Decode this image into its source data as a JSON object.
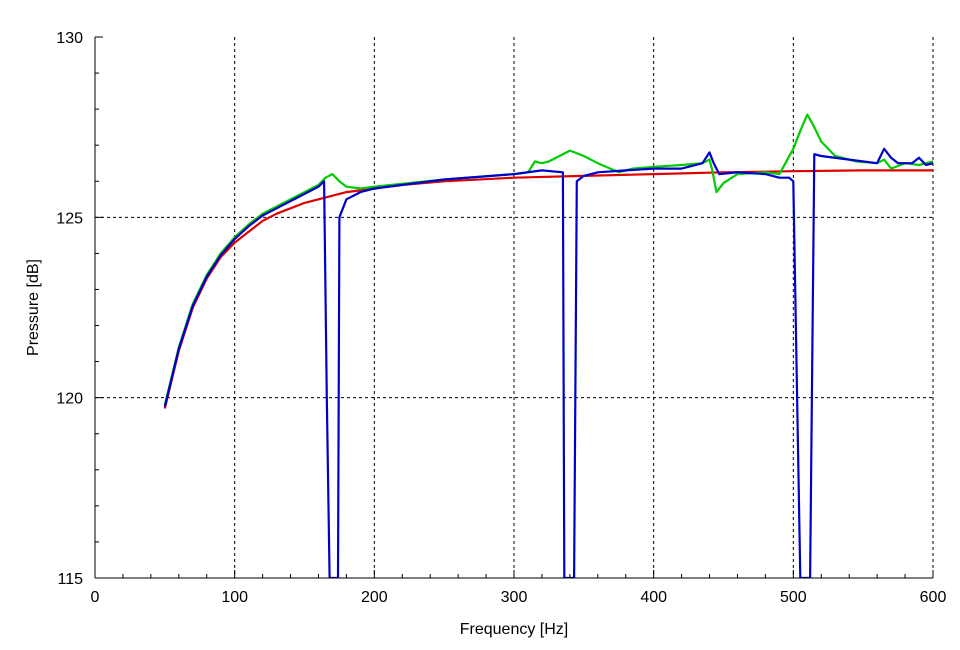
{
  "chart_data": {
    "type": "line",
    "title": "",
    "xlabel": "Frequency [Hz]",
    "ylabel": "Pressure [dB]",
    "xlim": [
      0,
      600
    ],
    "ylim": [
      115,
      130
    ],
    "x_ticks": [
      0,
      100,
      200,
      300,
      400,
      500,
      600
    ],
    "y_ticks": [
      115,
      120,
      125,
      130
    ],
    "x_tick_labels": [
      "0",
      "100",
      "200",
      "300",
      "400",
      "500",
      "600"
    ],
    "y_tick_labels": [
      "115",
      "120",
      "125",
      "130"
    ],
    "x_minor_step": 20,
    "y_minor_step": 1,
    "grid": "dashed at major ticks",
    "legend": "none",
    "series": [
      {
        "color": "#dd0000",
        "points": [
          [
            50,
            119.7
          ],
          [
            60,
            121.3
          ],
          [
            70,
            122.5
          ],
          [
            80,
            123.3
          ],
          [
            90,
            123.9
          ],
          [
            100,
            124.3
          ],
          [
            110,
            124.6
          ],
          [
            120,
            124.9
          ],
          [
            130,
            125.1
          ],
          [
            140,
            125.25
          ],
          [
            150,
            125.4
          ],
          [
            160,
            125.5
          ],
          [
            170,
            125.6
          ],
          [
            180,
            125.7
          ],
          [
            200,
            125.8
          ],
          [
            220,
            125.9
          ],
          [
            250,
            126.0
          ],
          [
            300,
            126.1
          ],
          [
            350,
            126.15
          ],
          [
            400,
            126.2
          ],
          [
            450,
            126.25
          ],
          [
            500,
            126.28
          ],
          [
            550,
            126.3
          ],
          [
            600,
            126.3
          ]
        ]
      },
      {
        "color": "#00cc00",
        "points": [
          [
            50,
            119.8
          ],
          [
            60,
            121.4
          ],
          [
            70,
            122.6
          ],
          [
            80,
            123.4
          ],
          [
            90,
            124.0
          ],
          [
            100,
            124.45
          ],
          [
            110,
            124.8
          ],
          [
            120,
            125.1
          ],
          [
            130,
            125.3
          ],
          [
            140,
            125.5
          ],
          [
            150,
            125.7
          ],
          [
            160,
            125.9
          ],
          [
            165,
            126.1
          ],
          [
            170,
            126.2
          ],
          [
            175,
            126.0
          ],
          [
            180,
            125.85
          ],
          [
            190,
            125.8
          ],
          [
            200,
            125.85
          ],
          [
            250,
            126.05
          ],
          [
            300,
            126.2
          ],
          [
            310,
            126.25
          ],
          [
            315,
            126.55
          ],
          [
            320,
            126.5
          ],
          [
            325,
            126.55
          ],
          [
            340,
            126.85
          ],
          [
            350,
            126.7
          ],
          [
            360,
            126.5
          ],
          [
            375,
            126.25
          ],
          [
            385,
            126.35
          ],
          [
            400,
            126.4
          ],
          [
            420,
            126.45
          ],
          [
            435,
            126.5
          ],
          [
            440,
            126.6
          ],
          [
            442,
            126.3
          ],
          [
            445,
            125.7
          ],
          [
            450,
            125.95
          ],
          [
            460,
            126.2
          ],
          [
            480,
            126.25
          ],
          [
            490,
            126.2
          ],
          [
            500,
            126.9
          ],
          [
            505,
            127.4
          ],
          [
            510,
            127.85
          ],
          [
            515,
            127.5
          ],
          [
            520,
            127.1
          ],
          [
            530,
            126.7
          ],
          [
            545,
            126.55
          ],
          [
            560,
            126.5
          ],
          [
            565,
            126.6
          ],
          [
            570,
            126.35
          ],
          [
            580,
            126.5
          ],
          [
            590,
            126.45
          ],
          [
            600,
            126.55
          ]
        ]
      },
      {
        "color": "#0000cc",
        "points": [
          [
            50,
            119.75
          ],
          [
            60,
            121.35
          ],
          [
            70,
            122.55
          ],
          [
            80,
            123.35
          ],
          [
            90,
            123.95
          ],
          [
            100,
            124.4
          ],
          [
            110,
            124.75
          ],
          [
            120,
            125.05
          ],
          [
            130,
            125.25
          ],
          [
            140,
            125.45
          ],
          [
            150,
            125.65
          ],
          [
            160,
            125.85
          ],
          [
            164,
            126.0
          ],
          [
            166,
            120.0
          ],
          [
            168,
            115.0
          ],
          [
            174,
            115.0
          ],
          [
            175,
            125.0
          ],
          [
            180,
            125.5
          ],
          [
            190,
            125.7
          ],
          [
            200,
            125.8
          ],
          [
            250,
            126.05
          ],
          [
            300,
            126.2
          ],
          [
            320,
            126.3
          ],
          [
            335,
            126.25
          ],
          [
            336,
            115.0
          ],
          [
            343,
            115.0
          ],
          [
            345,
            126.0
          ],
          [
            350,
            126.15
          ],
          [
            360,
            126.25
          ],
          [
            380,
            126.3
          ],
          [
            400,
            126.35
          ],
          [
            420,
            126.35
          ],
          [
            435,
            126.5
          ],
          [
            440,
            126.8
          ],
          [
            443,
            126.5
          ],
          [
            447,
            126.2
          ],
          [
            460,
            126.25
          ],
          [
            480,
            126.2
          ],
          [
            490,
            126.1
          ],
          [
            497,
            126.1
          ],
          [
            500,
            126.0
          ],
          [
            505,
            115.0
          ],
          [
            512,
            115.0
          ],
          [
            515,
            126.75
          ],
          [
            520,
            126.7
          ],
          [
            540,
            126.6
          ],
          [
            560,
            126.5
          ],
          [
            565,
            126.9
          ],
          [
            570,
            126.65
          ],
          [
            575,
            126.5
          ],
          [
            585,
            126.5
          ],
          [
            590,
            126.65
          ],
          [
            595,
            126.45
          ],
          [
            600,
            126.5
          ]
        ]
      }
    ]
  }
}
